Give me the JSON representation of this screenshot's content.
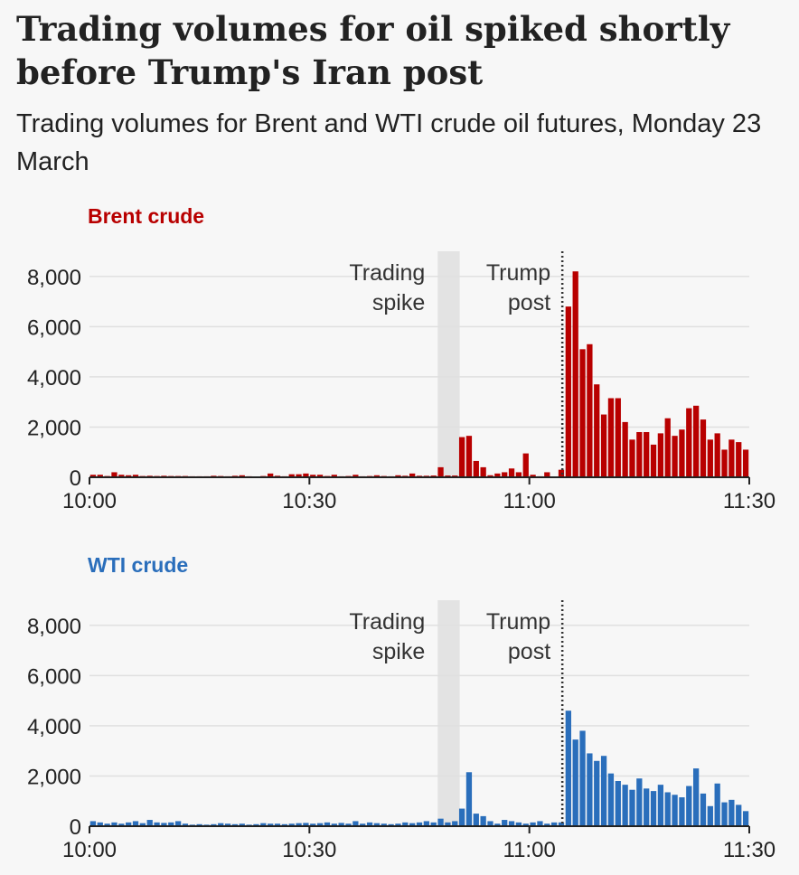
{
  "header": {
    "title": "Trading volumes for oil spiked shortly before Trump's Iran post",
    "subtitle": "Trading volumes for Brent and WTI crude oil futures, Monday 23 March"
  },
  "colors": {
    "brent": "#b80000",
    "wti": "#2a6ebb",
    "shade": "#e3e3e3",
    "grid": "#e0e0e0"
  },
  "chart_data": [
    {
      "type": "bar",
      "name": "brent",
      "title": "Brent crude",
      "color": "#b80000",
      "ylim": [
        0,
        9000
      ],
      "yticks": [
        0,
        2000,
        4000,
        6000,
        8000
      ],
      "ytick_labels": [
        "0",
        "2,000",
        "4,000",
        "6,000",
        "8,000"
      ],
      "xlim": [
        0,
        90
      ],
      "xticks": [
        0,
        30,
        60,
        90
      ],
      "xtick_labels": [
        "10:00",
        "10:30",
        "11:00",
        "11:30"
      ],
      "x_unit": "minutes after 10:00",
      "shade": [
        47.5,
        50.5
      ],
      "vline": 64.5,
      "annotations": {
        "spike_line1": "Trading",
        "spike_line2": "spike",
        "post_line1": "Trump",
        "post_line2": "post"
      },
      "values": [
        100,
        100,
        50,
        200,
        100,
        80,
        100,
        50,
        60,
        50,
        60,
        50,
        50,
        50,
        40,
        40,
        40,
        60,
        50,
        40,
        60,
        80,
        40,
        30,
        50,
        150,
        60,
        40,
        120,
        120,
        150,
        100,
        100,
        50,
        100,
        40,
        50,
        100,
        40,
        50,
        80,
        50,
        40,
        80,
        60,
        150,
        60,
        60,
        70,
        400,
        70,
        70,
        1600,
        1650,
        650,
        400,
        80,
        150,
        200,
        350,
        200,
        950,
        100,
        40,
        200,
        30,
        300,
        6800,
        8200,
        5100,
        5300,
        3700,
        2500,
        3150,
        3150,
        2200,
        1500,
        1800,
        1800,
        1300,
        1750,
        2350,
        1650,
        1900,
        2750,
        2850,
        2300,
        1500,
        1750,
        1100,
        1500,
        1400,
        1100
      ]
    },
    {
      "type": "bar",
      "name": "wti",
      "title": "WTI crude",
      "color": "#2a6ebb",
      "ylim": [
        0,
        9000
      ],
      "yticks": [
        0,
        2000,
        4000,
        6000,
        8000
      ],
      "ytick_labels": [
        "0",
        "2,000",
        "4,000",
        "6,000",
        "8,000"
      ],
      "xlim": [
        0,
        90
      ],
      "xticks": [
        0,
        30,
        60,
        90
      ],
      "xtick_labels": [
        "10:00",
        "10:30",
        "11:00",
        "11:30"
      ],
      "x_unit": "minutes after 10:00",
      "shade": [
        47.5,
        50.5
      ],
      "vline": 64.5,
      "annotations": {
        "spike_line1": "Trading",
        "spike_line2": "spike",
        "post_line1": "Trump",
        "post_line2": "post"
      },
      "values": [
        200,
        150,
        100,
        150,
        100,
        150,
        200,
        120,
        250,
        150,
        130,
        150,
        200,
        100,
        60,
        80,
        60,
        80,
        120,
        100,
        80,
        100,
        60,
        80,
        120,
        100,
        100,
        80,
        100,
        120,
        130,
        100,
        120,
        150,
        100,
        130,
        100,
        200,
        100,
        150,
        120,
        100,
        80,
        100,
        150,
        120,
        150,
        200,
        150,
        300,
        150,
        200,
        700,
        2150,
        500,
        400,
        200,
        100,
        250,
        200,
        150,
        100,
        150,
        200,
        100,
        150,
        150,
        4600,
        3450,
        3800,
        2900,
        2600,
        2800,
        2100,
        1800,
        1650,
        1450,
        1900,
        1500,
        1400,
        1650,
        1350,
        1250,
        1150,
        1600,
        2300,
        1300,
        800,
        1700,
        950,
        1050,
        850,
        600
      ]
    }
  ]
}
